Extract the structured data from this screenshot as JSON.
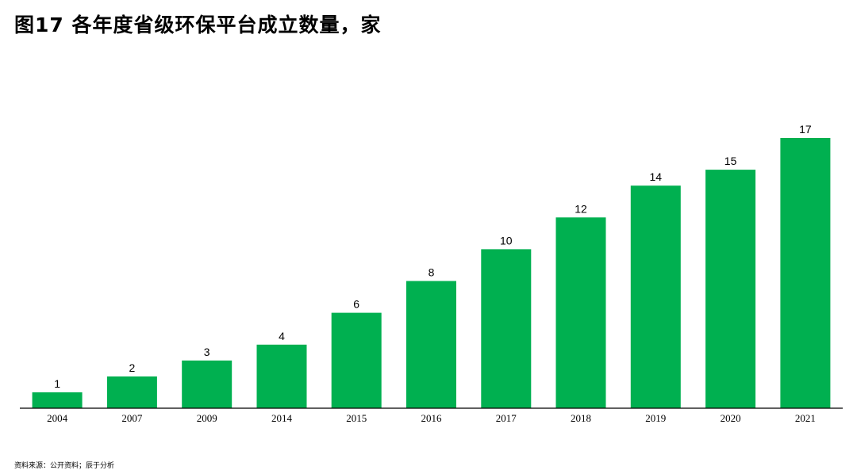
{
  "title": "图17  各年度省级环保平台成立数量，家",
  "source": "资料来源：公开资料；辰于分析",
  "colors": {
    "bar": "#00b050",
    "axis": "#000000",
    "text": "#000000"
  },
  "chart_data": {
    "type": "bar",
    "categories": [
      "2004",
      "2007",
      "2009",
      "2014",
      "2015",
      "2016",
      "2017",
      "2018",
      "2019",
      "2020",
      "2021"
    ],
    "values": [
      1,
      2,
      3,
      4,
      6,
      8,
      10,
      12,
      14,
      15,
      17
    ],
    "title": "图17  各年度省级环保平台成立数量，家",
    "xlabel": "",
    "ylabel": "",
    "ylim": [
      0,
      17
    ],
    "grid": false,
    "legend": "none",
    "data_labels": true
  }
}
